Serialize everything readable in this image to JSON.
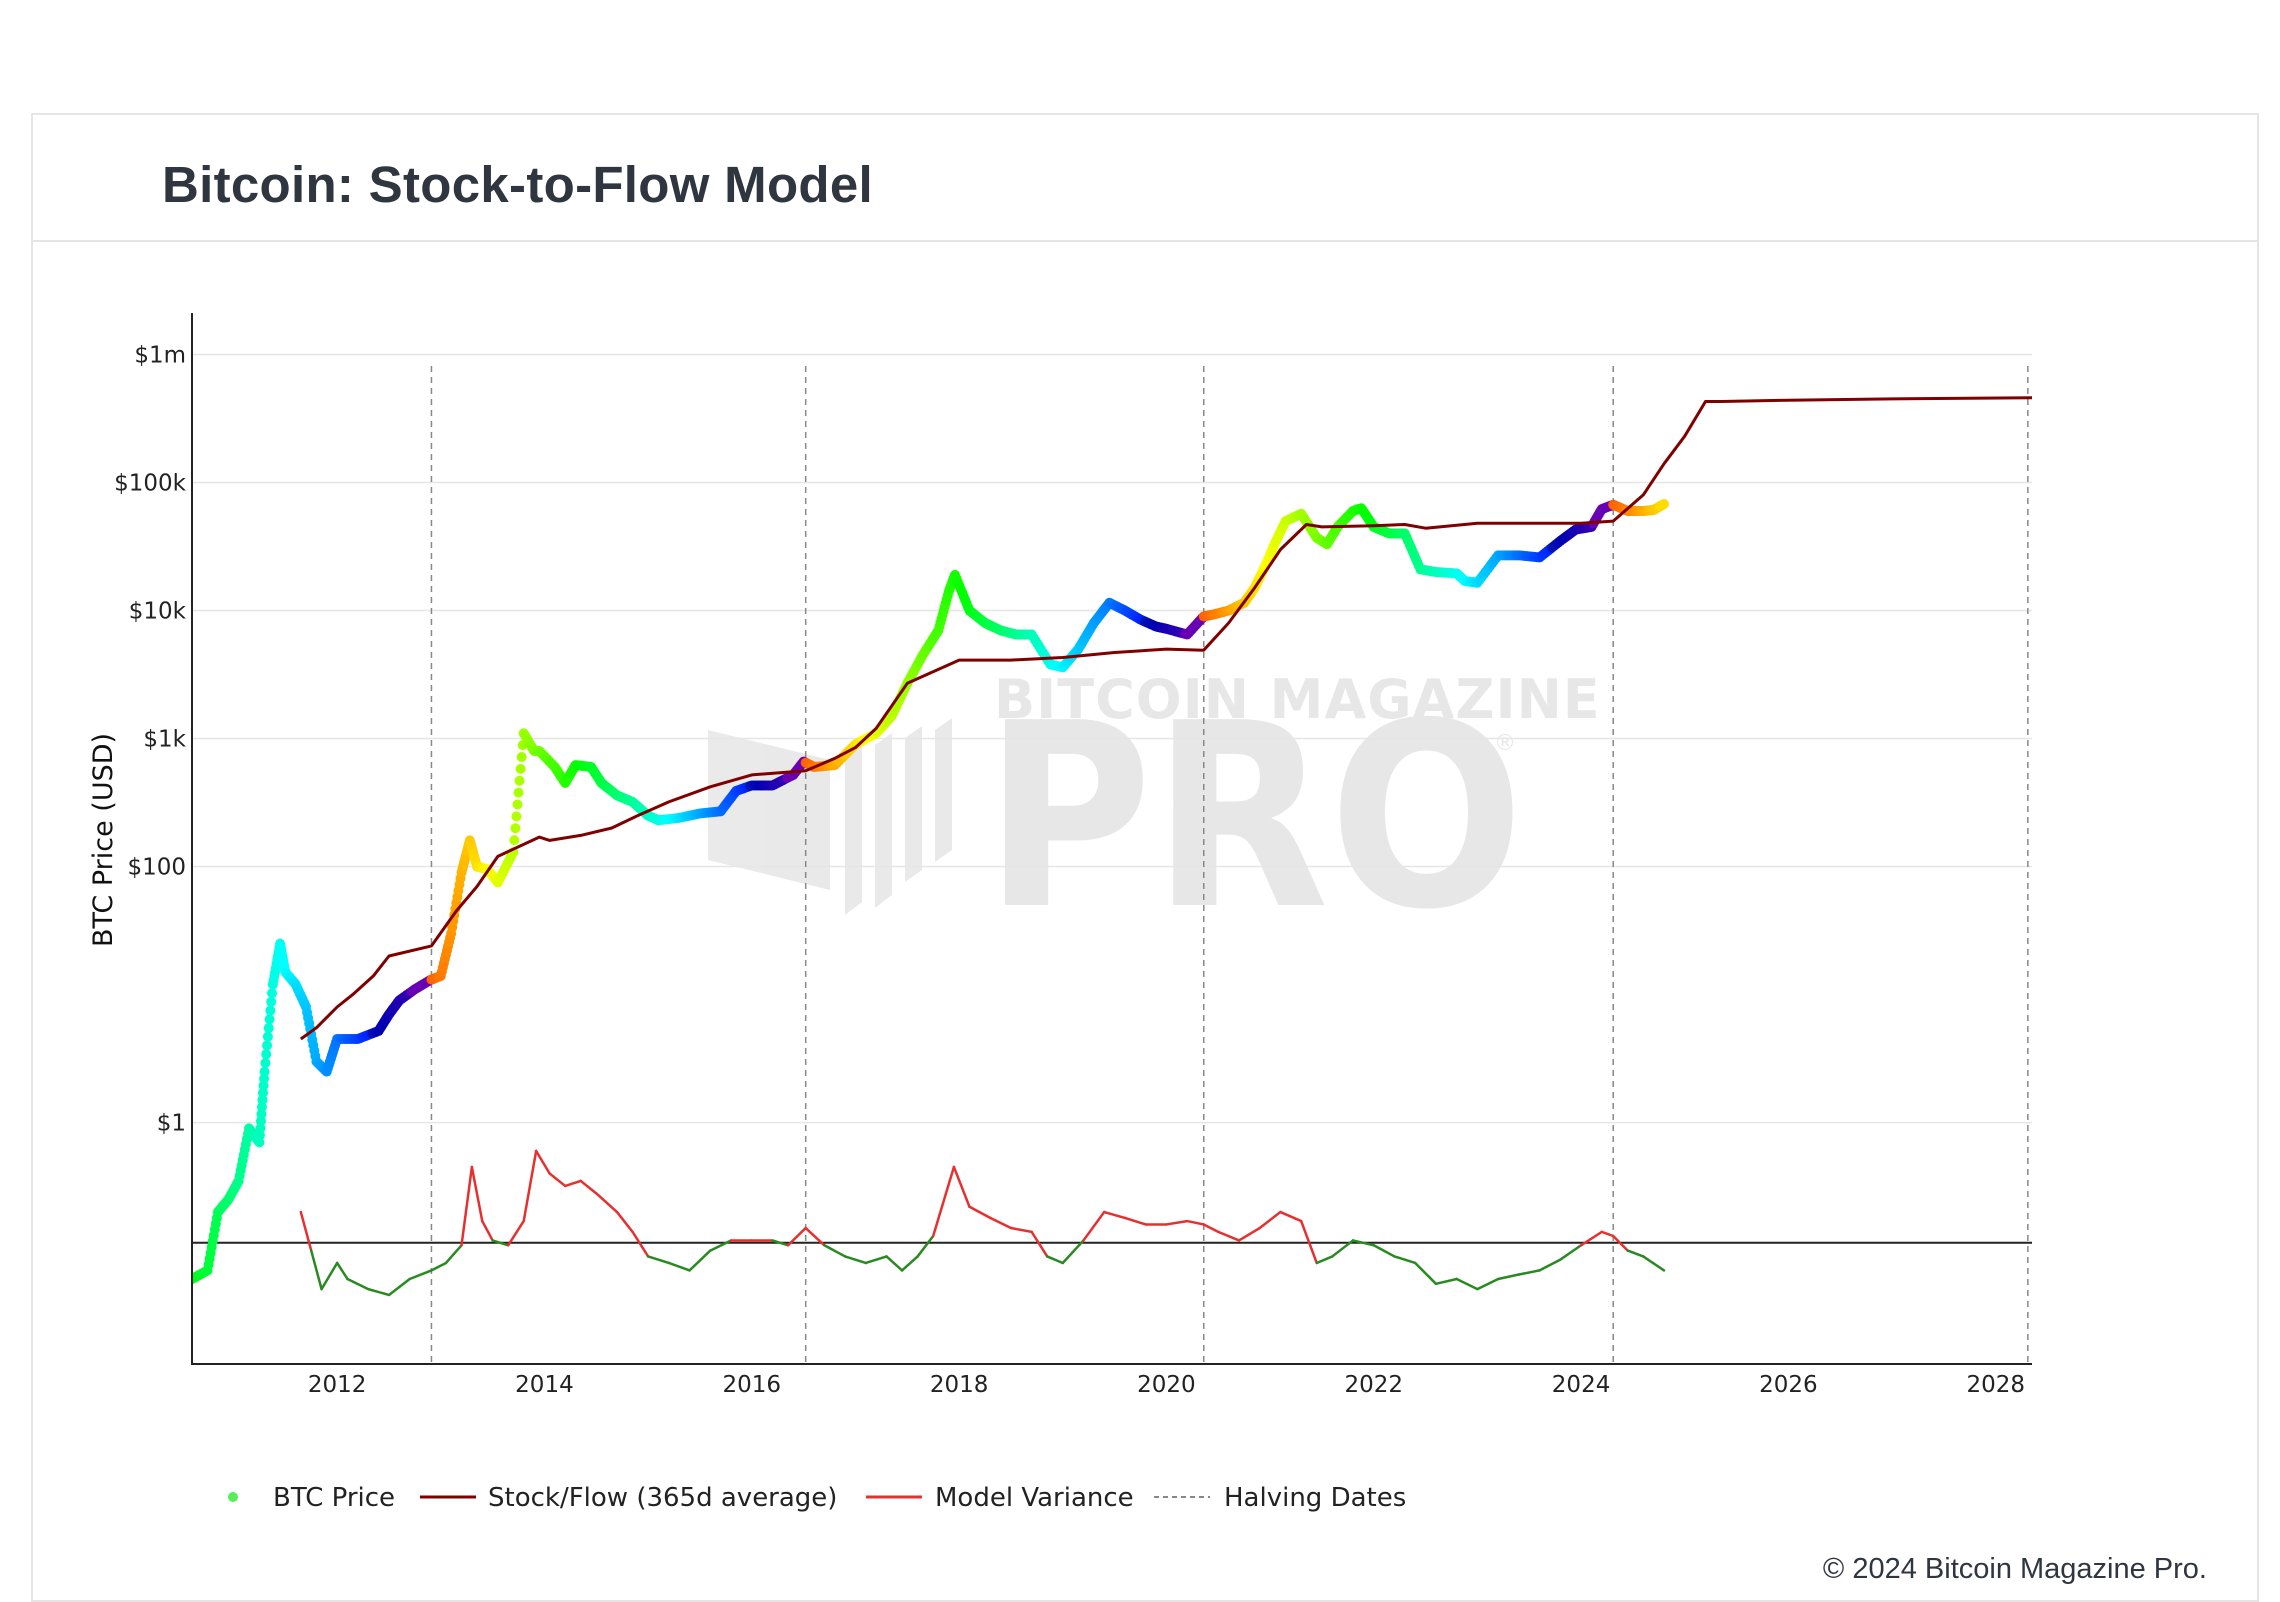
{
  "title": "Bitcoin: Stock-to-Flow Model",
  "copyright": "© 2024 Bitcoin Magazine Pro.",
  "watermark": {
    "line1": "BITCOIN MAGAZINE",
    "line2": "PRO",
    "mark": "®"
  },
  "colors": {
    "stock_flow": "#800000",
    "model_variance_above": "#e63030",
    "model_variance_below": "#2a8a22",
    "halving": "#888888",
    "gridline": "#e6e6e6",
    "legend_btc_price": "#55ee55"
  },
  "chart_data": {
    "type": "scatter",
    "title": "Bitcoin: Stock-to-Flow Model",
    "ylabel": "BTC Price (USD)",
    "y_scale": "log",
    "ylim": [
      0.013,
      2000000
    ],
    "xlim": [
      2010.6,
      2028.35
    ],
    "x_ticks": [
      2012,
      2014,
      2016,
      2018,
      2020,
      2022,
      2024,
      2026,
      2028
    ],
    "x_tick_labels": [
      "2012",
      "2014",
      "2016",
      "2018",
      "2020",
      "2022",
      "2024",
      "2026",
      "2028"
    ],
    "y_ticks": [
      1,
      100,
      1000,
      10000,
      100000,
      1000000
    ],
    "y_tick_labels": [
      "$1",
      "$100",
      "$1k",
      "$10k",
      "$100k",
      "$1m"
    ],
    "grid": true,
    "legend_position": "bottom",
    "legend": [
      "BTC Price",
      "Stock/Flow (365d average)",
      "Model Variance",
      "Halving Dates"
    ],
    "halving_dates": [
      2012.91,
      2016.52,
      2020.36,
      2024.31,
      2028.31
    ],
    "model_variance_baseline": 0.115,
    "btc_price": {
      "name": "BTC Price",
      "x": [
        2010.6,
        2010.75,
        2010.85,
        2010.95,
        2011.05,
        2011.15,
        2011.25,
        2011.3,
        2011.38,
        2011.45,
        2011.5,
        2011.6,
        2011.7,
        2011.8,
        2011.9,
        2012.0,
        2012.2,
        2012.4,
        2012.5,
        2012.6,
        2012.75,
        2012.9,
        2013.0,
        2013.1,
        2013.2,
        2013.28,
        2013.35,
        2013.45,
        2013.55,
        2013.7,
        2013.8,
        2013.9,
        2013.95,
        2014.1,
        2014.2,
        2014.3,
        2014.45,
        2014.55,
        2014.7,
        2014.85,
        2015.0,
        2015.1,
        2015.3,
        2015.5,
        2015.7,
        2015.85,
        2016.0,
        2016.2,
        2016.4,
        2016.5,
        2016.6,
        2016.8,
        2017.0,
        2017.2,
        2017.35,
        2017.5,
        2017.65,
        2017.8,
        2017.9,
        2017.96,
        2018.1,
        2018.25,
        2018.4,
        2018.55,
        2018.7,
        2018.88,
        2019.0,
        2019.15,
        2019.3,
        2019.45,
        2019.6,
        2019.75,
        2019.9,
        2020.0,
        2020.2,
        2020.36,
        2020.45,
        2020.6,
        2020.75,
        2020.85,
        2020.95,
        2021.05,
        2021.15,
        2021.3,
        2021.45,
        2021.55,
        2021.65,
        2021.8,
        2021.88,
        2022.0,
        2022.15,
        2022.3,
        2022.45,
        2022.6,
        2022.8,
        2022.88,
        2023.0,
        2023.2,
        2023.4,
        2023.6,
        2023.8,
        2023.95,
        2024.1,
        2024.2,
        2024.31,
        2024.45,
        2024.6,
        2024.7,
        2024.8
      ],
      "y": [
        0.06,
        0.07,
        0.2,
        0.25,
        0.35,
        0.9,
        0.7,
        2.5,
        12,
        25,
        15,
        12,
        8,
        3,
        2.5,
        4.5,
        4.5,
        5.2,
        7,
        9,
        11,
        13,
        14,
        30,
        90,
        160,
        100,
        95,
        75,
        130,
        1100,
        800,
        800,
        600,
        450,
        620,
        600,
        450,
        360,
        320,
        250,
        230,
        240,
        260,
        270,
        390,
        430,
        430,
        520,
        660,
        600,
        620,
        900,
        1100,
        1500,
        2700,
        4500,
        7000,
        14000,
        19000,
        10000,
        8000,
        7000,
        6500,
        6500,
        3800,
        3600,
        5000,
        8000,
        11500,
        10000,
        8500,
        7500,
        7200,
        6500,
        9000,
        9300,
        10000,
        11500,
        15000,
        22000,
        34000,
        50000,
        57000,
        37000,
        33000,
        45000,
        60000,
        63000,
        45000,
        40000,
        40000,
        21000,
        20000,
        19500,
        17000,
        16500,
        27000,
        27000,
        26000,
        35000,
        43000,
        45000,
        62000,
        67000,
        60000,
        60000,
        61000,
        68000
      ],
      "colored_by": "days since halving (rainbow)"
    },
    "stock_flow_365d": {
      "name": "Stock/Flow (365d average)",
      "x": [
        2011.65,
        2011.8,
        2012.0,
        2012.15,
        2012.35,
        2012.5,
        2012.91,
        2013.15,
        2013.35,
        2013.55,
        2013.95,
        2014.05,
        2014.35,
        2014.65,
        2014.9,
        2015.2,
        2015.6,
        2016.0,
        2016.52,
        2016.8,
        2017.0,
        2017.2,
        2017.5,
        2018.0,
        2018.5,
        2019.0,
        2019.5,
        2020.0,
        2020.36,
        2020.6,
        2020.85,
        2021.1,
        2021.35,
        2021.5,
        2022.0,
        2022.3,
        2022.5,
        2023.0,
        2023.5,
        2024.0,
        2024.31,
        2024.6,
        2024.8,
        2025.0,
        2025.2,
        2025.35,
        2026.0,
        2027.0,
        2028.35
      ],
      "y": [
        4.5,
        5.5,
        8,
        10,
        14,
        20,
        24,
        45,
        70,
        120,
        170,
        160,
        175,
        200,
        250,
        320,
        420,
        520,
        560,
        700,
        850,
        1200,
        2700,
        4100,
        4100,
        4300,
        4700,
        5000,
        4900,
        8000,
        15000,
        30000,
        47000,
        45000,
        46000,
        47000,
        44000,
        48000,
        48000,
        48000,
        50000,
        80000,
        140000,
        230000,
        430000,
        430000,
        440000,
        450000,
        460000
      ]
    },
    "model_variance": {
      "name": "Model Variance",
      "x": [
        2011.65,
        2011.75,
        2011.85,
        2012.0,
        2012.1,
        2012.3,
        2012.5,
        2012.7,
        2012.91,
        2013.05,
        2013.2,
        2013.3,
        2013.4,
        2013.5,
        2013.65,
        2013.8,
        2013.92,
        2014.05,
        2014.2,
        2014.35,
        2014.5,
        2014.7,
        2014.85,
        2015.0,
        2015.2,
        2015.4,
        2015.6,
        2015.8,
        2016.0,
        2016.2,
        2016.35,
        2016.52,
        2016.7,
        2016.9,
        2017.1,
        2017.3,
        2017.45,
        2017.6,
        2017.75,
        2017.95,
        2018.1,
        2018.3,
        2018.5,
        2018.7,
        2018.85,
        2019.0,
        2019.2,
        2019.4,
        2019.6,
        2019.8,
        2020.0,
        2020.2,
        2020.36,
        2020.5,
        2020.7,
        2020.9,
        2021.1,
        2021.3,
        2021.45,
        2021.6,
        2021.8,
        2022.0,
        2022.2,
        2022.4,
        2022.6,
        2022.8,
        2023.0,
        2023.2,
        2023.4,
        2023.6,
        2023.8,
        2024.0,
        2024.2,
        2024.31,
        2024.45,
        2024.6,
        2024.8
      ],
      "y": [
        0.2,
        0.1,
        0.05,
        0.08,
        0.06,
        0.05,
        0.045,
        0.06,
        0.07,
        0.08,
        0.11,
        0.45,
        0.17,
        0.12,
        0.11,
        0.17,
        0.6,
        0.4,
        0.32,
        0.35,
        0.28,
        0.2,
        0.14,
        0.09,
        0.08,
        0.07,
        0.1,
        0.12,
        0.12,
        0.12,
        0.11,
        0.15,
        0.11,
        0.09,
        0.08,
        0.09,
        0.07,
        0.09,
        0.13,
        0.45,
        0.22,
        0.18,
        0.15,
        0.14,
        0.09,
        0.08,
        0.12,
        0.2,
        0.18,
        0.16,
        0.16,
        0.17,
        0.16,
        0.14,
        0.12,
        0.15,
        0.2,
        0.17,
        0.08,
        0.09,
        0.12,
        0.11,
        0.09,
        0.08,
        0.055,
        0.06,
        0.05,
        0.06,
        0.065,
        0.07,
        0.085,
        0.11,
        0.14,
        0.13,
        0.1,
        0.09,
        0.07
      ]
    }
  }
}
